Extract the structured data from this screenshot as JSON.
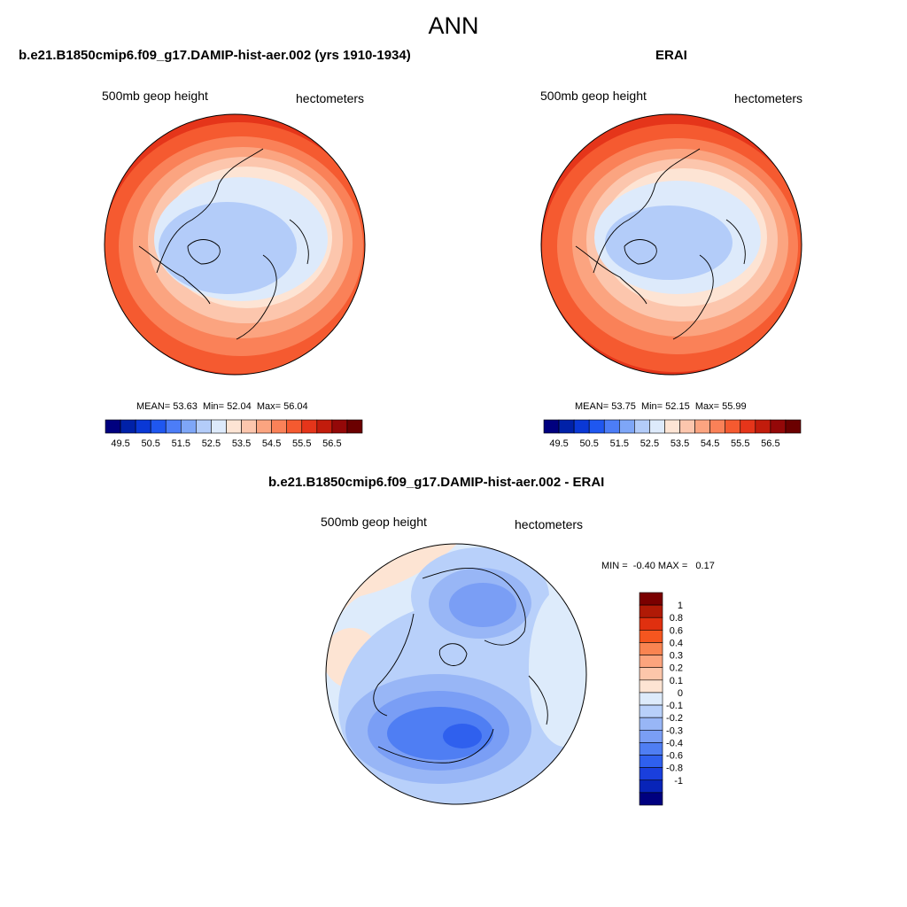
{
  "title": "ANN",
  "panels": [
    {
      "id": "model",
      "title": "b.e21.B1850cmip6.f09_g17.DAMIP-hist-aer.002 (yrs 1910-1934)",
      "left_label": "500mb geop height",
      "right_label": "hectometers",
      "stats": {
        "mean_label": "MEAN=",
        "mean": "53.63",
        "min_label": "Min=",
        "min": "52.04",
        "max_label": "Max=",
        "max": "56.04"
      }
    },
    {
      "id": "obs",
      "title": "ERAI",
      "left_label": "500mb geop height",
      "right_label": "hectometers",
      "stats": {
        "mean_label": "MEAN=",
        "mean": "53.75",
        "min_label": "Min=",
        "min": "52.15",
        "max_label": "Max=",
        "max": "55.99"
      }
    }
  ],
  "colorbar_top": {
    "colors": [
      "#00007f",
      "#0021a8",
      "#0a38d6",
      "#1f57f0",
      "#4c7df7",
      "#7ea6f7",
      "#b3ccf9",
      "#ddeafb",
      "#fde4d4",
      "#fcc6ad",
      "#fba480",
      "#fa8158",
      "#f55a30",
      "#e5351a",
      "#c21c0c",
      "#940808",
      "#6b0000"
    ],
    "tick_labels": [
      "49.5",
      "50.5",
      "51.5",
      "52.5",
      "53.5",
      "54.5",
      "55.5",
      "56.5"
    ]
  },
  "diff_panel": {
    "title": "b.e21.B1850cmip6.f09_g17.DAMIP-hist-aer.002 - ERAI",
    "left_label": "500mb geop height",
    "right_label": "hectometers",
    "minmax": {
      "min_label": "MIN =",
      "min": "-0.40",
      "max_label": "MAX =",
      "max": "0.17"
    }
  },
  "colorbar_diff": {
    "colors": [
      "#7a0000",
      "#b01a06",
      "#e0300f",
      "#f5561f",
      "#f98451",
      "#fca47d",
      "#fdc6aa",
      "#fde4d3",
      "#ddebfb",
      "#b8d0fa",
      "#98b6f6",
      "#7a9ef5",
      "#4f7ef3",
      "#2f60ee",
      "#1a3fdd",
      "#0824b8",
      "#00007f"
    ],
    "tick_labels": [
      "1",
      "0.8",
      "0.6",
      "0.4",
      "0.3",
      "0.2",
      "0.1",
      "0",
      "-0.1",
      "-0.2",
      "-0.3",
      "-0.4",
      "-0.6",
      "-0.8",
      "-1"
    ]
  }
}
